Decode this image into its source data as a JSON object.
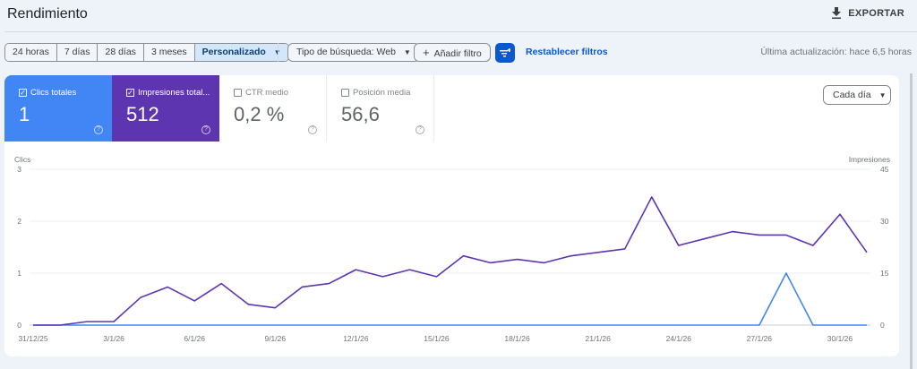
{
  "header": {
    "title": "Rendimiento",
    "export_label": "EXPORTAR"
  },
  "toolbar": {
    "date_ranges": [
      "24 horas",
      "7 días",
      "28 días",
      "3 meses",
      "Personalizado"
    ],
    "selected_range": "Personalizado",
    "search_type": "Tipo de búsqueda: Web",
    "add_filter": "Añadir filtro",
    "reset_filters": "Restablecer filtros",
    "last_update": "Última actualización: hace 6,5 horas"
  },
  "metrics": [
    {
      "label": "Clics totales",
      "value": "1",
      "checked": true,
      "color": "#4285f4"
    },
    {
      "label": "Impresiones total...",
      "value": "512",
      "checked": true,
      "color": "#5e35b1"
    },
    {
      "label": "CTR medio",
      "value": "0,2 %",
      "checked": false
    },
    {
      "label": "Posición media",
      "value": "56,6",
      "checked": false
    }
  ],
  "granularity": "Cada día",
  "chart_data": {
    "type": "line",
    "left_axis_label": "Clics",
    "right_axis_label": "Impresiones",
    "left_ylim": [
      0,
      3
    ],
    "right_ylim": [
      0,
      45
    ],
    "left_ticks": [
      "0",
      "1",
      "2",
      "3"
    ],
    "right_ticks": [
      "0",
      "15",
      "30",
      "45"
    ],
    "x": [
      "31/12/25",
      "1/1/26",
      "2/1/26",
      "3/1/26",
      "4/1/26",
      "5/1/26",
      "6/1/26",
      "7/1/26",
      "8/1/26",
      "9/1/26",
      "10/1/26",
      "11/1/26",
      "12/1/26",
      "13/1/26",
      "14/1/26",
      "15/1/26",
      "16/1/26",
      "17/1/26",
      "18/1/26",
      "19/1/26",
      "20/1/26",
      "21/1/26",
      "22/1/26",
      "23/1/26",
      "24/1/26",
      "25/1/26",
      "26/1/26",
      "27/1/26",
      "28/1/26",
      "29/1/26",
      "30/1/26",
      "31/1/26"
    ],
    "x_tick_labels": [
      "31/12/25",
      "3/1/26",
      "6/1/26",
      "9/1/26",
      "12/1/26",
      "15/1/26",
      "18/1/26",
      "21/1/26",
      "24/1/26",
      "27/1/26",
      "30/1/26"
    ],
    "grid": true,
    "series": [
      {
        "name": "Clics",
        "axis": "left",
        "color": "#4285f4",
        "values": [
          0,
          0,
          0,
          0,
          0,
          0,
          0,
          0,
          0,
          0,
          0,
          0,
          0,
          0,
          0,
          0,
          0,
          0,
          0,
          0,
          0,
          0,
          0,
          0,
          0,
          0,
          0,
          0,
          1,
          0,
          0,
          0
        ]
      },
      {
        "name": "Impresiones",
        "axis": "right",
        "color": "#5e35b1",
        "values": [
          0,
          0,
          1,
          1,
          8,
          11,
          7,
          12,
          6,
          5,
          11,
          12,
          16,
          14,
          16,
          14,
          20,
          18,
          19,
          18,
          20,
          21,
          22,
          37,
          23,
          25,
          27,
          26,
          26,
          23,
          32,
          21
        ]
      }
    ]
  }
}
